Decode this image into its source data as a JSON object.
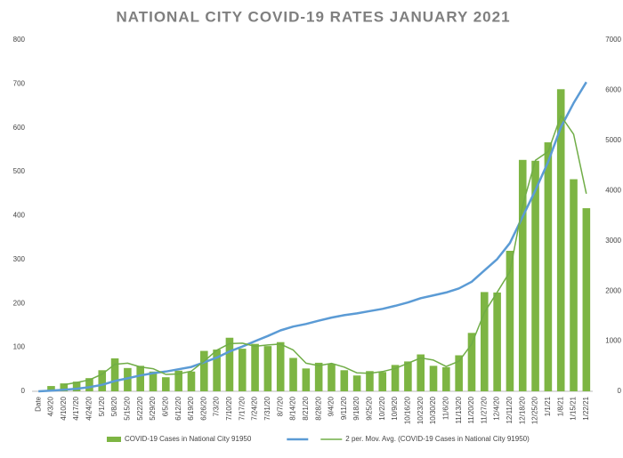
{
  "chart_data": {
    "type": "combo",
    "title": "NATIONAL CITY COVID-19 RATES JANUARY 2021",
    "categories": [
      "Date",
      "4/3/20",
      "4/10/20",
      "4/17/20",
      "4/24/20",
      "5/1/20",
      "5/8/20",
      "5/15/20",
      "5/22/20",
      "5/29/20",
      "6/5/20",
      "6/12/20",
      "6/19/20",
      "6/26/20",
      "7/3/20",
      "7/10/20",
      "7/17/20",
      "7/24/20",
      "7/31/20",
      "8/7/20",
      "8/14/20",
      "8/21/20",
      "8/28/20",
      "9/4/20",
      "9/11/20",
      "9/18/20",
      "9/25/20",
      "10/2/20",
      "10/9/20",
      "10/16/20",
      "10/23/20",
      "10/30/20",
      "11/6/20",
      "11/13/20",
      "11/20/20",
      "11/27/20",
      "12/4/20",
      "12/11/20",
      "12/18/20",
      "12/25/20",
      "1/1/21",
      "1/8/21",
      "1/15/21",
      "1/22/21"
    ],
    "series": [
      {
        "name": "COVID-19 Cases in National City 91950",
        "color": "#7db543",
        "kind": "bar",
        "values": [
          null,
          12,
          18,
          22,
          30,
          48,
          75,
          53,
          58,
          45,
          32,
          47,
          45,
          92,
          95,
          122,
          97,
          108,
          103,
          112,
          76,
          52,
          65,
          62,
          48,
          36,
          46,
          44,
          60,
          68,
          84,
          58,
          55,
          82,
          133,
          226,
          225,
          320,
          527,
          525,
          567,
          688,
          483,
          417
        ]
      },
      {
        "color": "#5b9bd5",
        "kind": "line",
        "axis": "y2",
        "values": [
          0,
          12,
          30,
          52,
          82,
          130,
          205,
          258,
          316,
          361,
          393,
          440,
          485,
          577,
          672,
          794,
          891,
          999,
          1102,
          1214,
          1290,
          1342,
          1407,
          1469,
          1517,
          1553,
          1599,
          1643,
          1703,
          1771,
          1855,
          1913,
          1968,
          2050,
          2183,
          2409,
          2634,
          2954,
          3481,
          4006,
          4573,
          5261,
          5744,
          6161
        ]
      },
      {
        "name": "2 per. Mov. Avg. (COVID-19 Cases in National City 91950)",
        "color": "#70ad47",
        "kind": "line",
        "values": [
          null,
          null,
          15,
          20,
          26,
          39,
          61.5,
          64,
          55.5,
          51.5,
          38.5,
          39.5,
          46,
          68.5,
          93.5,
          108.5,
          109.5,
          102.5,
          105.5,
          107.5,
          94,
          64,
          58.5,
          63.5,
          55,
          42,
          41,
          45,
          52,
          64,
          76,
          71,
          56.5,
          68.5,
          107.5,
          179.5,
          225.5,
          272.5,
          423.5,
          526,
          546,
          627.5,
          585.5,
          450
        ]
      }
    ],
    "ylim": [
      0,
      800
    ],
    "yticks": [
      0,
      100,
      200,
      300,
      400,
      500,
      600,
      700,
      800
    ],
    "y2lim": [
      0,
      7000
    ],
    "y2ticks": [
      0,
      1000,
      2000,
      3000,
      4000,
      5000,
      6000,
      7000
    ],
    "legend": "bottom"
  }
}
